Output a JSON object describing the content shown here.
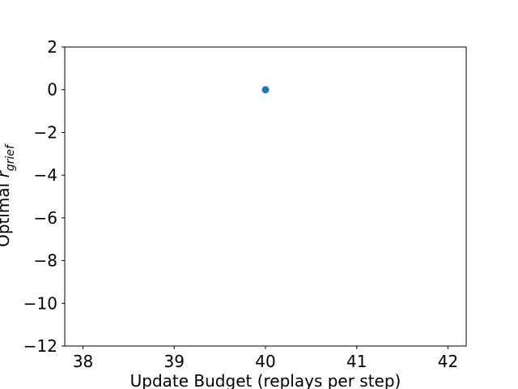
{
  "chart_data": {
    "type": "scatter",
    "points": [
      {
        "x": 40,
        "y": 0
      }
    ],
    "xlabel": "Update Budget (replays per step)",
    "ylabel": {
      "prefix": "Optimal ",
      "main": "r",
      "subscript": "grief"
    },
    "xlim": [
      37.8,
      42.2
    ],
    "ylim": [
      -12,
      2
    ],
    "xticks": [
      "38",
      "39",
      "40",
      "41",
      "42"
    ],
    "xtick_values": [
      38,
      39,
      40,
      41,
      42
    ],
    "yticks": [
      "2",
      "0",
      "−2",
      "−4",
      "−6",
      "−8",
      "−10",
      "−12"
    ],
    "ytick_values": [
      2,
      0,
      -2,
      -4,
      -6,
      -8,
      -10,
      -12
    ],
    "grid": false,
    "legend": "none",
    "colors": {
      "point": "#1f77b4",
      "axis": "#000000"
    }
  }
}
